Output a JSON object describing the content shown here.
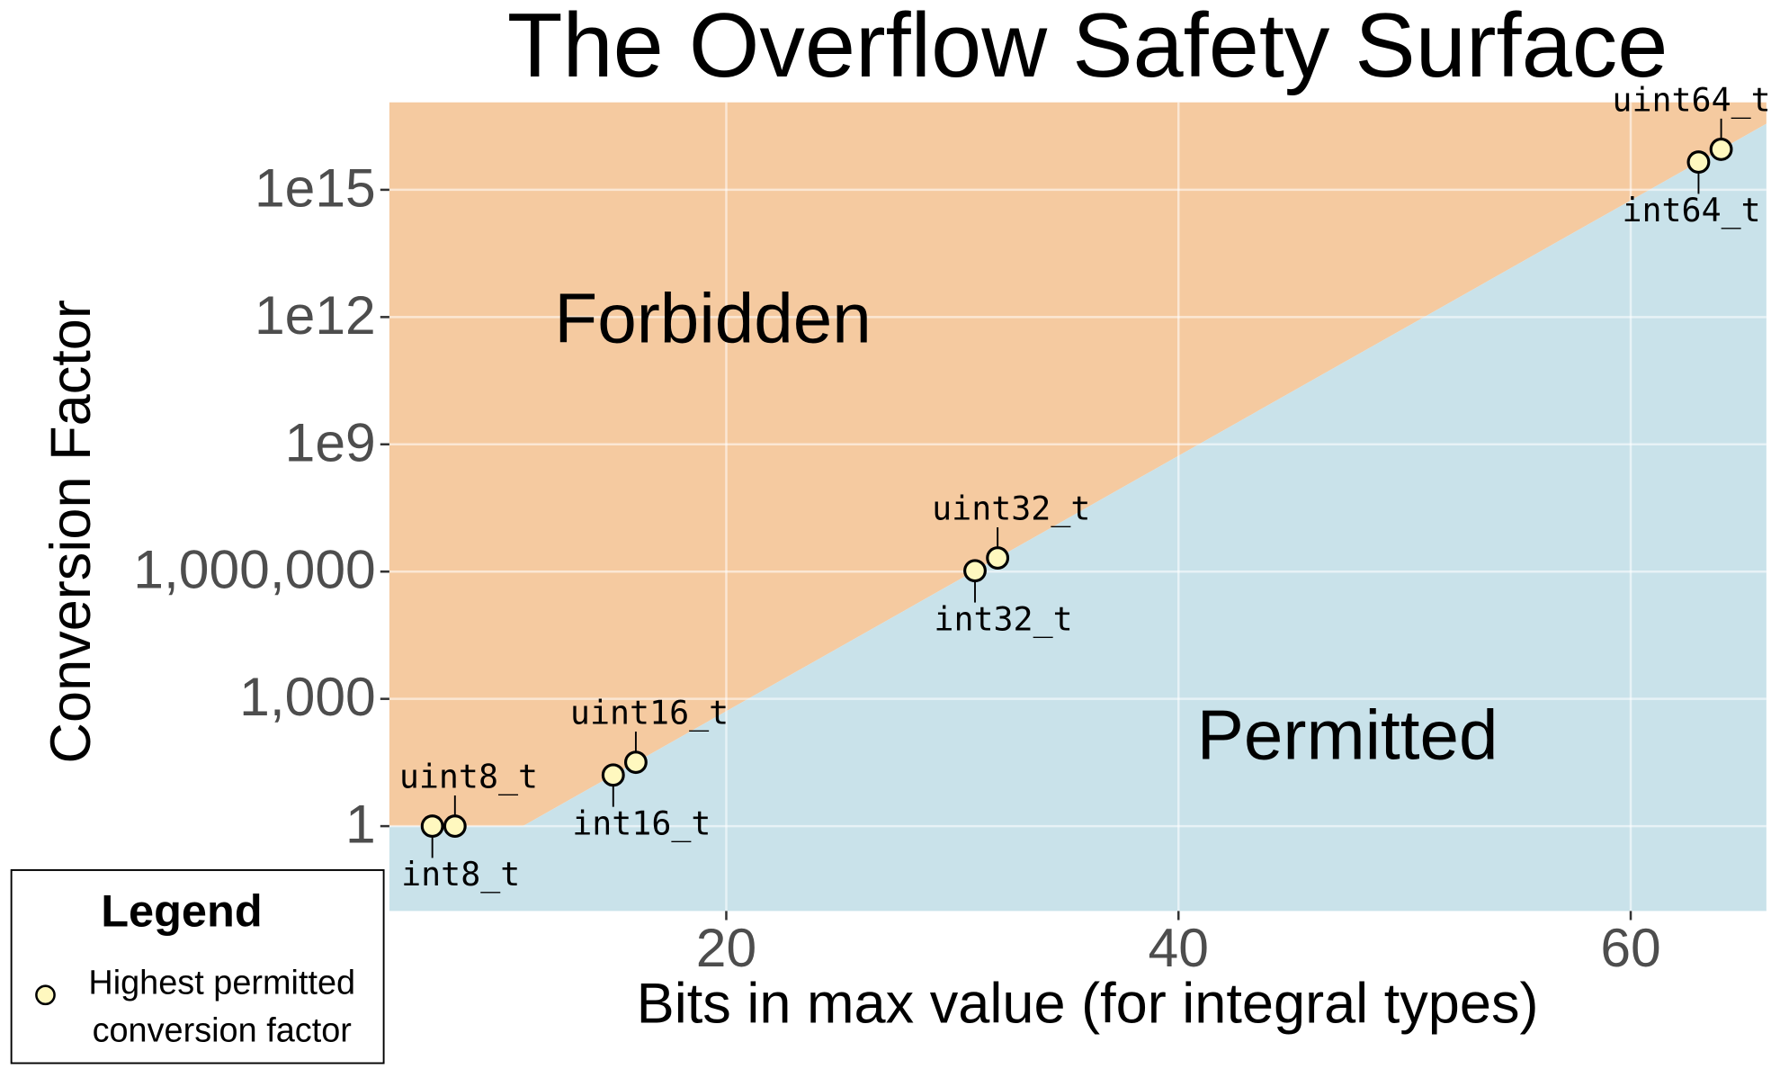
{
  "chart_data": {
    "type": "scatter",
    "title": "The Overflow Safety Surface",
    "x_label": "Bits in max value (for integral types)",
    "y_label": "Conversion Factor",
    "xlim": [
      5.1,
      66
    ],
    "xticks": [
      20,
      40,
      60
    ],
    "ylim": [
      0.01,
      1.15e+17
    ],
    "yticks": [
      1,
      {
        "value": 1000,
        "label": "1,000"
      },
      {
        "value": 1000000,
        "label": "1,000,000"
      },
      {
        "value": 1000000000,
        "label": "1e9"
      },
      {
        "value": 1000000000000,
        "label": "1e12"
      },
      {
        "value": 1000000000000000,
        "label": "1e15"
      }
    ],
    "y_scale": "log",
    "grid": true,
    "boundary": {
      "x": [
        5.1,
        11,
        66
      ],
      "y": [
        1,
        1,
        36028797018963968
      ],
      "above_color": "#f5caa0",
      "below_color": "#c9e2ea"
    },
    "annotations": {
      "above": "Forbidden",
      "below": "Permitted"
    },
    "series": [
      {
        "name": "Highest permitted conversion factor",
        "color": "#fff8bf",
        "x": [
          7,
          8,
          15,
          16,
          31,
          32,
          63,
          64
        ],
        "values": [
          1,
          1,
          16,
          32,
          1048576,
          2097152,
          4503599627370496,
          9007199254740992
        ],
        "labels": [
          "int8_t",
          "uint8_t",
          "int16_t",
          "uint16_t",
          "int32_t",
          "uint32_t",
          "int64_t",
          "uint64_t"
        ]
      }
    ],
    "legend": {
      "title": "Legend",
      "position": "bottom-left"
    }
  }
}
